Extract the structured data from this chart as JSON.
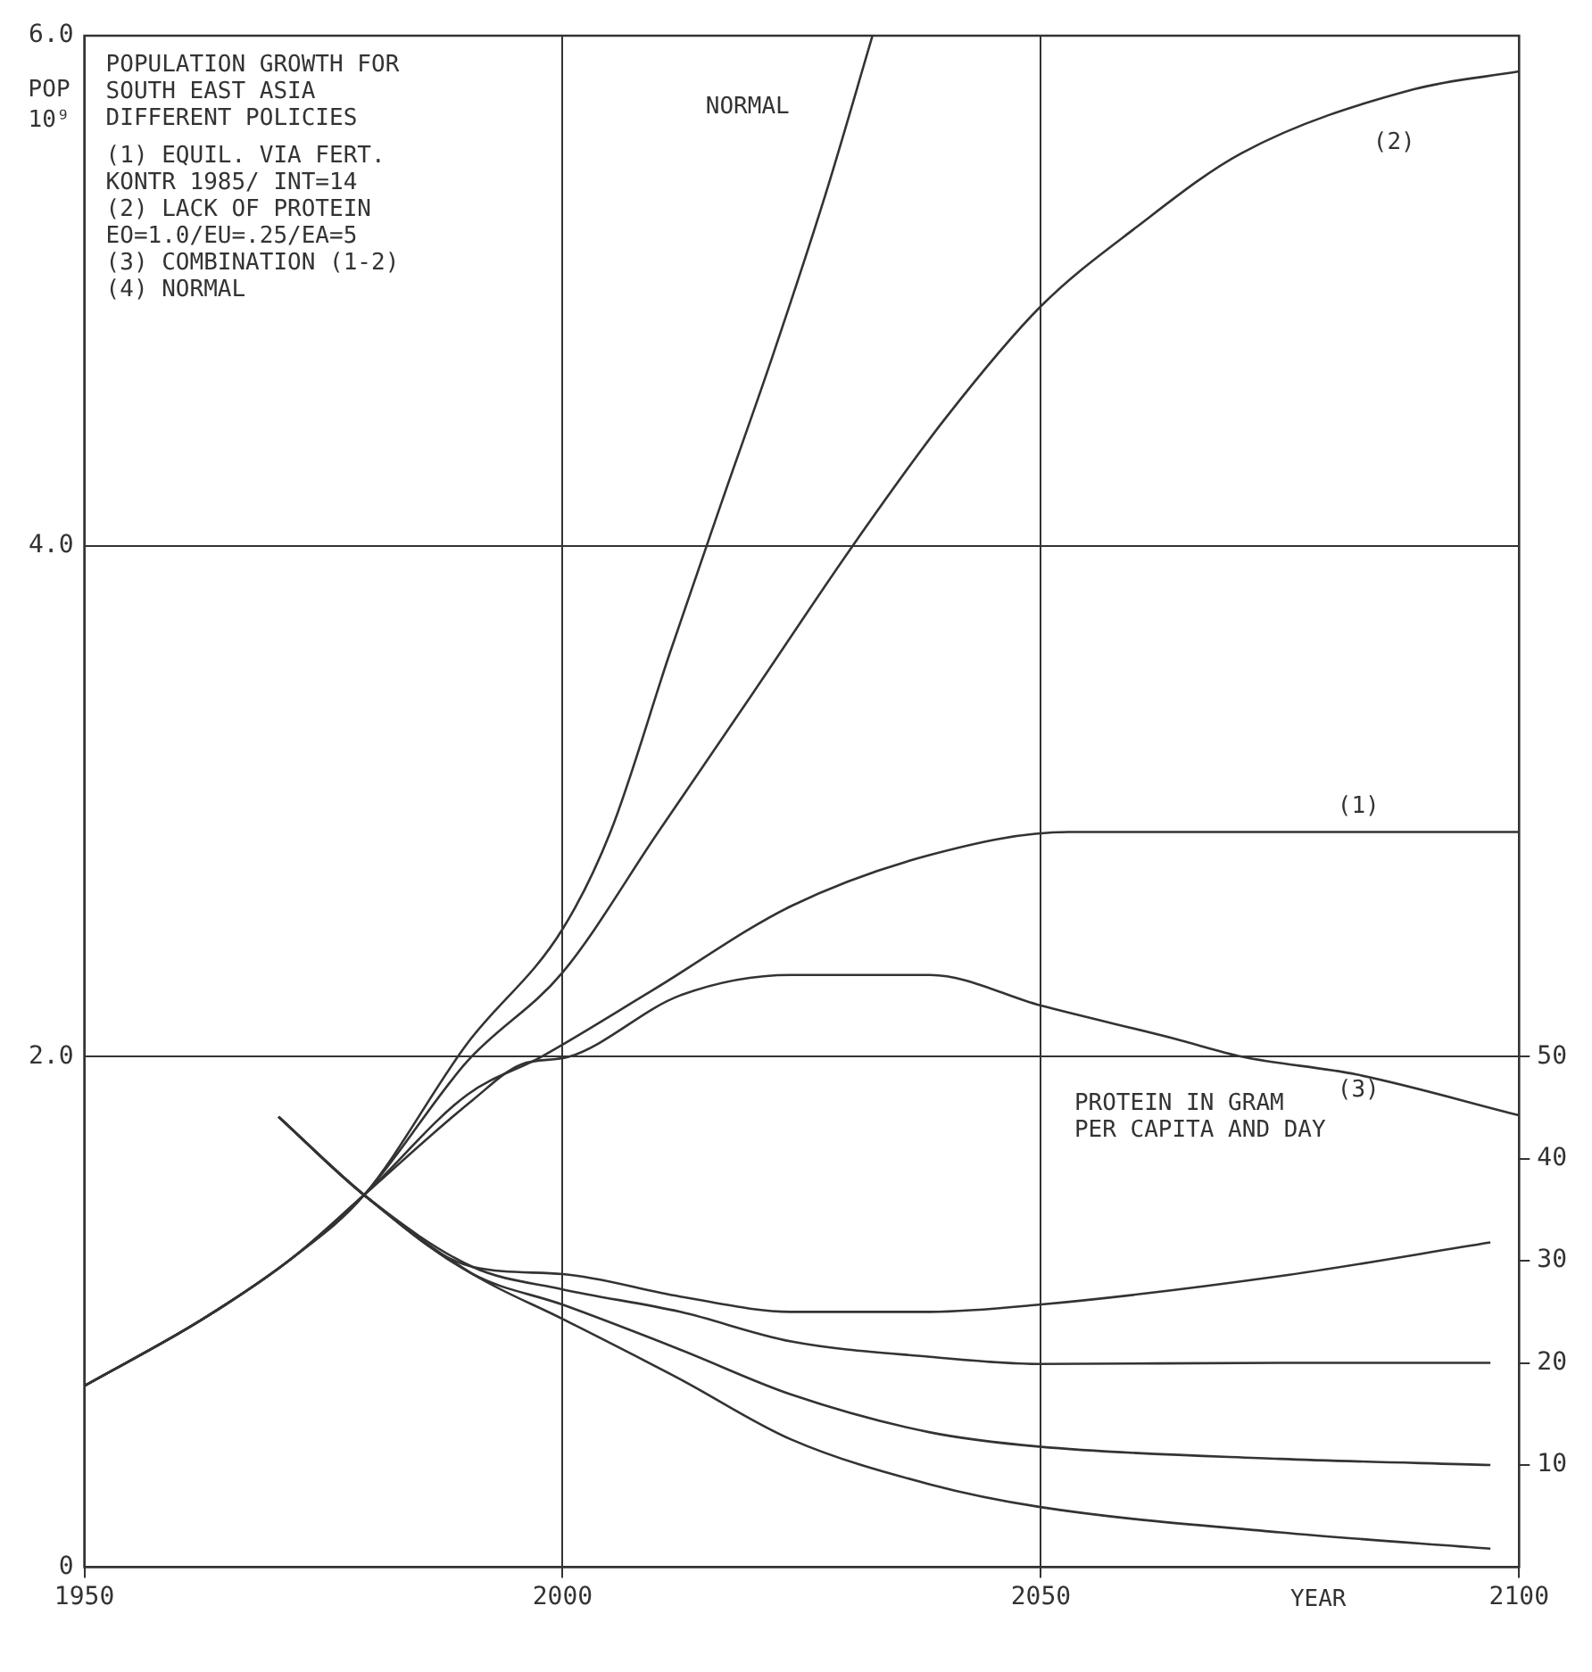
{
  "chart_data": {
    "type": "line",
    "title": "POPULATION GROWTH FOR\nSOUTH EAST ASIA\nDIFFERENT POLICIES",
    "xlabel": "YEAR",
    "ylabel": "POP 10⁹",
    "y2label": "PROTEIN IN GRAM\nPER CAPITA AND DAY",
    "xlim": [
      1950,
      2100
    ],
    "xticks": [
      1950,
      2000,
      2050,
      2100
    ],
    "ylim": [
      0,
      6
    ],
    "yticks": [
      0,
      {
        "value": 2,
        "label": "2.0"
      },
      {
        "value": 4,
        "label": "4.0"
      },
      {
        "value": 6,
        "label": "6.0"
      }
    ],
    "y2lim": [
      0,
      150
    ],
    "y2ticks": [
      10,
      20,
      30,
      40,
      50
    ],
    "grid": true,
    "legend": false,
    "series": [
      {
        "name": "NORMAL",
        "color": "#333333",
        "x": [
          1950,
          1962.3,
          1971.7,
          1979.3,
          1990,
          2000,
          2005,
          2011.2,
          2016.7,
          2022,
          2027.5,
          2032.4
        ],
        "values": [
          0.71,
          0.97,
          1.21,
          1.46,
          2.05,
          2.5,
          2.88,
          3.58,
          4.18,
          4.75,
          5.38,
          6.0
        ]
      },
      {
        "name": "(2)",
        "color": "#333333",
        "x": [
          1950,
          1962.3,
          1971.7,
          1979.3,
          1990,
          2000,
          2010,
          2020,
          2030.3,
          2040,
          2050,
          2060,
          2071,
          2089,
          2100
        ],
        "values": [
          0.71,
          0.97,
          1.21,
          1.46,
          1.98,
          2.33,
          2.88,
          3.43,
          4.0,
          4.5,
          4.94,
          5.25,
          5.54,
          5.79,
          5.86
        ]
      },
      {
        "name": "(1)",
        "color": "#333333",
        "x": [
          1950,
          1962.3,
          1971.7,
          1979.3,
          1990,
          1997.8,
          2009.4,
          2023.9,
          2038.4,
          2052.9,
          2100
        ],
        "values": [
          0.71,
          0.97,
          1.21,
          1.46,
          1.85,
          2.0,
          2.26,
          2.59,
          2.79,
          2.88,
          2.88
        ]
      },
      {
        "name": "(3)",
        "color": "#333333",
        "x": [
          1950,
          1962.3,
          1971.7,
          1979.3,
          1990.6,
          1995.7,
          2000.7,
          2012.3,
          2023.9,
          2038.4,
          2050,
          2064,
          2071,
          2083,
          2100
        ],
        "values": [
          0.71,
          0.97,
          1.21,
          1.46,
          1.83,
          1.97,
          2.0,
          2.24,
          2.32,
          2.32,
          2.2,
          2.07,
          2.0,
          1.93,
          1.77
        ]
      },
      {
        "color": "#333333",
        "axis": "y2",
        "x": [
          1970.3,
          1979.3,
          1990.6,
          2000,
          2012.3,
          2023.9,
          2038.4,
          2049.8,
          2075,
          2097
        ],
        "values": [
          44.1,
          36.4,
          29.4,
          28.7,
          26.5,
          25.0,
          25.0,
          25.7,
          28.5,
          31.8
        ]
      },
      {
        "color": "#333333",
        "axis": "y2",
        "x": [
          1970.3,
          1979.3,
          1990.6,
          2000,
          2012.3,
          2023.9,
          2038.4,
          2049.8,
          2075,
          2097
        ],
        "values": [
          44.1,
          36.4,
          29.4,
          27.2,
          25.0,
          22.1,
          20.6,
          19.9,
          20,
          20
        ]
      },
      {
        "color": "#333333",
        "axis": "y2",
        "x": [
          1970.3,
          1979.3,
          1990.6,
          2000,
          2012.3,
          2023.9,
          2038.4,
          2049.8,
          2075,
          2097
        ],
        "values": [
          44.1,
          36.4,
          28.7,
          25.7,
          21.3,
          16.9,
          13.2,
          11.8,
          10.6,
          10
        ]
      },
      {
        "color": "#333333",
        "axis": "y2",
        "x": [
          1970.3,
          1979.3,
          1990.6,
          2000,
          2012.3,
          2023.9,
          2038.4,
          2049.8,
          2075,
          2097
        ],
        "values": [
          44.1,
          36.4,
          28.7,
          24.3,
          18.4,
          12.5,
          8.1,
          5.9,
          3.4,
          1.8
        ]
      }
    ],
    "annotations": [
      "(1) EQUIL. VIA FERT.",
      "KONTR 1985/ INT=14",
      "(2) LACK OF PROTEIN",
      "EO=1.0/EU=.25/EA=5",
      "(3) COMBINATION (1-2)",
      "(4) NORMAL"
    ]
  }
}
